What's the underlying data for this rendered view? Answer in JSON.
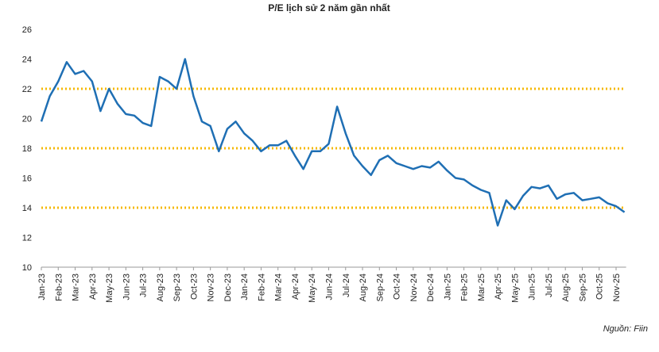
{
  "chart_data": {
    "type": "line",
    "title": "P/E lịch sử 2 năm gần nhất",
    "categories": [
      "Jan-23",
      null,
      "Feb-23",
      null,
      "Mar-23",
      null,
      "Apr-23",
      null,
      "May-23",
      null,
      "Jun-23",
      null,
      "Jul-23",
      null,
      "Aug-23",
      null,
      "Sep-23",
      null,
      "Oct-23",
      null,
      "Nov-23",
      null,
      "Dec-23",
      null,
      "Jan-24",
      null,
      "Feb-24",
      null,
      "Mar-24",
      null,
      "Apr-24",
      null,
      "May-24",
      null,
      "Jun-24",
      null,
      "Jul-24",
      null,
      "Aug-24",
      null,
      "Sep-24",
      null,
      "Oct-24",
      null,
      "Nov-24",
      null,
      "Dec-24",
      null,
      "Jan-25",
      null,
      "Feb-25",
      null,
      "Mar-25",
      null,
      "Apr-25",
      null,
      "May-25",
      null,
      "Jun-25",
      null,
      "Jul-25",
      null,
      "Aug-25",
      null,
      "Sep-25",
      null,
      "Oct-25",
      null,
      "Nov-25",
      null
    ],
    "series": [
      {
        "name": "P/E",
        "color": "#1f6fb4",
        "values": [
          19.8,
          21.5,
          22.5,
          23.8,
          23.0,
          23.2,
          22.5,
          20.5,
          22.0,
          21.0,
          20.3,
          20.2,
          19.7,
          19.5,
          22.8,
          22.5,
          22.0,
          24.0,
          21.5,
          19.8,
          19.5,
          17.8,
          19.3,
          19.8,
          19.0,
          18.5,
          17.8,
          18.2,
          18.2,
          18.5,
          17.5,
          16.6,
          17.8,
          17.8,
          18.3,
          20.8,
          19.0,
          17.5,
          16.8,
          16.2,
          17.2,
          17.5,
          17.0,
          16.8,
          16.6,
          16.8,
          16.7,
          17.1,
          16.5,
          16.0,
          15.9,
          15.5,
          15.2,
          15.0,
          12.8,
          14.5,
          13.9,
          14.8,
          15.4,
          15.3,
          15.5,
          14.6,
          14.9,
          15.0,
          14.5,
          14.6,
          14.7,
          14.3,
          14.1,
          13.7
        ]
      }
    ],
    "reference_lines": [
      22,
      18,
      14
    ],
    "reference_color": "#f5b800",
    "ylim": [
      10,
      26
    ],
    "yticks": [
      10,
      12,
      14,
      16,
      18,
      20,
      22,
      24,
      26
    ],
    "source": "Nguồn: Fiin"
  }
}
